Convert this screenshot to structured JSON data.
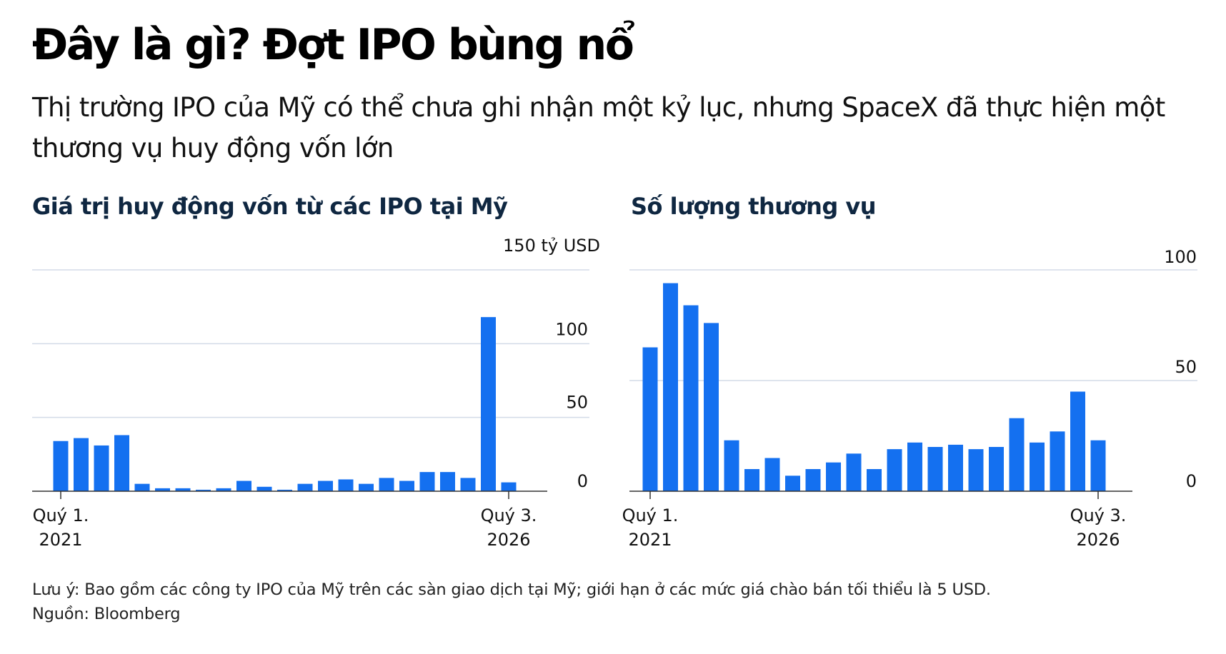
{
  "header": {
    "title": "Đây là gì? Đợt IPO bùng nổ",
    "subtitle": "Thị trường IPO của Mỹ có thể chưa ghi nhận một kỷ lục, nhưng SpaceX đã thực hiện một thương vụ huy động vốn lớn"
  },
  "colors": {
    "bar": "#1470f0",
    "grid": "#d3dbe7",
    "axis": "#333333"
  },
  "chart_data": [
    {
      "type": "bar",
      "title": "Giá trị huy động vốn từ các IPO tại Mỹ",
      "unit_label": "150 tỷ USD",
      "ylim": [
        0,
        150
      ],
      "yticks": [
        0,
        50,
        100,
        150
      ],
      "ytick_labels": [
        "0",
        "50",
        "100",
        ""
      ],
      "x_labels": [
        {
          "index": 0,
          "line1": "Quý 1.",
          "line2": "2021"
        },
        {
          "index": 22,
          "line1": "Quý 3.",
          "line2": "2026"
        }
      ],
      "values": [
        34,
        36,
        31,
        38,
        5,
        2,
        2,
        1,
        2,
        7,
        3,
        1,
        5,
        7,
        8,
        5,
        9,
        7,
        13,
        13,
        9,
        118,
        6
      ],
      "grid": true
    },
    {
      "type": "bar",
      "title": "Số lượng thương vụ",
      "unit_label": "",
      "ylim": [
        0,
        100
      ],
      "yticks": [
        0,
        50,
        100
      ],
      "ytick_labels": [
        "0",
        "50",
        "100"
      ],
      "x_labels": [
        {
          "index": 0,
          "line1": "Quý 1.",
          "line2": "2021"
        },
        {
          "index": 22,
          "line1": "Quý 3.",
          "line2": "2026"
        }
      ],
      "values": [
        65,
        94,
        84,
        76,
        23,
        10,
        15,
        7,
        10,
        13,
        17,
        10,
        19,
        22,
        20,
        21,
        19,
        20,
        33,
        22,
        27,
        45,
        23
      ],
      "grid": true
    }
  ],
  "footer": {
    "note": "Lưu ý: Bao gồm các công ty IPO của Mỹ trên các sàn giao dịch tại Mỹ; giới hạn ở các mức giá chào bán tối thiểu là 5 USD.",
    "source": "Nguồn: Bloomberg"
  }
}
